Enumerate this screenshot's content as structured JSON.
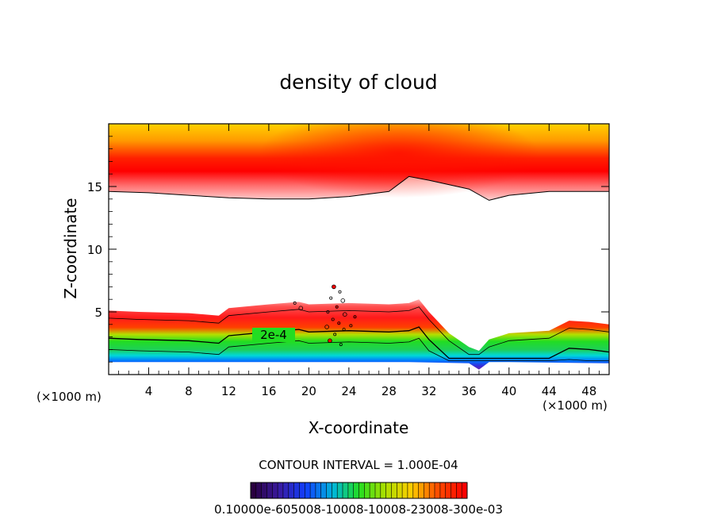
{
  "chart_data": {
    "type": "contour",
    "title": "density of cloud",
    "xlabel": "X-coordinate",
    "ylabel": "Z-coordinate",
    "x_unit_label": "(×1000 m)",
    "x_unit_label_right": "(×1000 m)",
    "xlim": [
      0,
      50
    ],
    "ylim": [
      0,
      20
    ],
    "x_ticks": [
      {
        "value": 4,
        "label": "4"
      },
      {
        "value": 8,
        "label": "8"
      },
      {
        "value": 12,
        "label": "12"
      },
      {
        "value": 16,
        "label": "16"
      },
      {
        "value": 20,
        "label": "20"
      },
      {
        "value": 24,
        "label": "24"
      },
      {
        "value": 28,
        "label": "28"
      },
      {
        "value": 32,
        "label": "32"
      },
      {
        "value": 36,
        "label": "36"
      },
      {
        "value": 40,
        "label": "40"
      },
      {
        "value": 44,
        "label": "44"
      },
      {
        "value": 48,
        "label": "48"
      }
    ],
    "y_ticks": [
      {
        "value": 5,
        "label": "5"
      },
      {
        "value": 10,
        "label": "10"
      },
      {
        "value": 15,
        "label": "15"
      }
    ],
    "contour_label": "2e-4",
    "contour_interval_text": "CONTOUR INTERVAL = 1.000E-04",
    "colorbar_labels": "0.10000e-605008-10008-10008-23008-300e-03",
    "upper_layer": {
      "base_x": [
        0,
        4,
        8,
        12,
        16,
        20,
        24,
        28,
        29,
        30,
        32,
        36,
        38,
        40,
        44,
        48,
        50
      ],
      "base_z": [
        14.6,
        14.5,
        14.3,
        14.1,
        14.0,
        14.0,
        14.2,
        14.6,
        15.2,
        15.8,
        15.5,
        14.8,
        13.9,
        14.3,
        14.6,
        14.6,
        14.6
      ]
    },
    "lower_layer": {
      "top_x": [
        0,
        3,
        8,
        11,
        12,
        16,
        19,
        20,
        24,
        28,
        30,
        31,
        32,
        34,
        36,
        37,
        38,
        40,
        44,
        46,
        48,
        50
      ],
      "top_z": [
        5.1,
        5.0,
        4.9,
        4.7,
        5.3,
        5.6,
        5.8,
        5.6,
        5.7,
        5.6,
        5.7,
        6.0,
        5.0,
        3.3,
        2.2,
        1.9,
        2.8,
        3.3,
        3.5,
        4.3,
        4.2,
        4.0
      ],
      "bottom_x": [
        0,
        10,
        20,
        30,
        36,
        37,
        38,
        40,
        50
      ],
      "bottom_z": [
        1.0,
        1.0,
        1.0,
        1.0,
        0.9,
        0.4,
        1.0,
        1.0,
        0.9
      ]
    }
  },
  "colors": {
    "yellow": "#ffd400",
    "orange": "#ff8a00",
    "red": "#ff0000",
    "pink": "#ffc0c0",
    "green": "#22dd22",
    "cyan": "#00d8d8",
    "blue": "#0050ff",
    "purple": "#6a2bb0"
  }
}
